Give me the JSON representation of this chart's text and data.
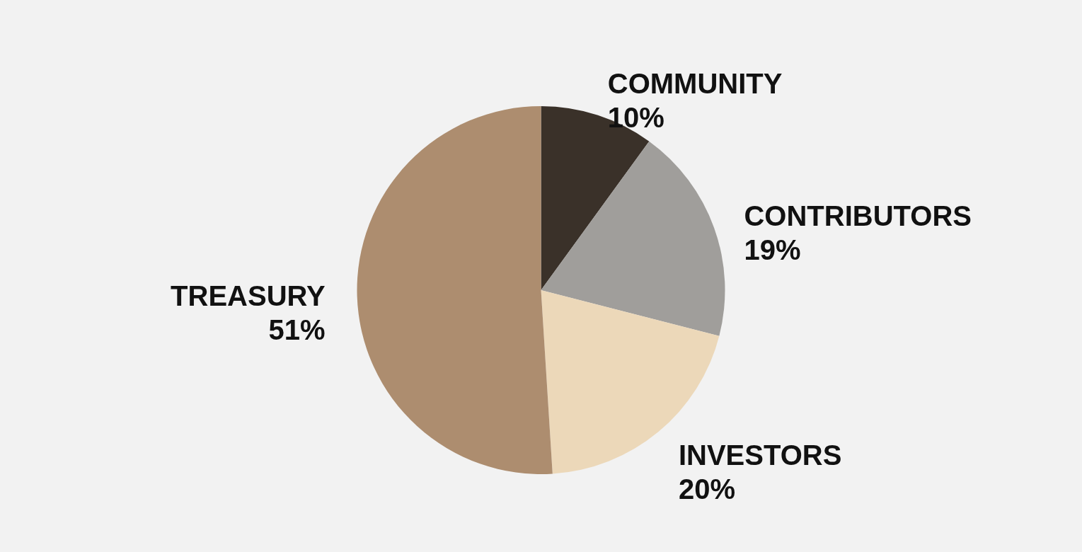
{
  "chart_data": {
    "type": "pie",
    "categories": [
      "COMMUNITY",
      "CONTRIBUTORS",
      "INVESTORS",
      "TREASURY"
    ],
    "values": [
      10,
      19,
      20,
      51
    ],
    "value_labels": [
      "10%",
      "19%",
      "20%",
      "51%"
    ],
    "colors": [
      "#3a3129",
      "#a09e9b",
      "#ecd8b9",
      "#ad8d6f"
    ]
  }
}
